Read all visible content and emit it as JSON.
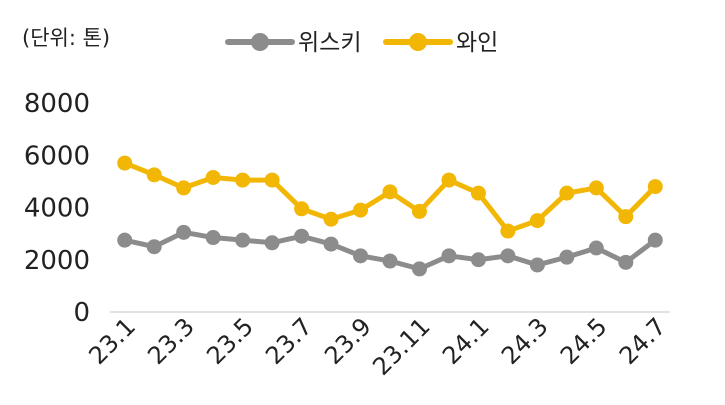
{
  "chart_data": {
    "type": "line",
    "unit_label": "(단위: 톤)",
    "x": [
      "23.1",
      "23.2",
      "23.3",
      "23.4",
      "23.5",
      "23.6",
      "23.7",
      "23.8",
      "23.9",
      "23.10",
      "23.11",
      "23.12",
      "24.1",
      "24.2",
      "24.3",
      "24.4",
      "24.5",
      "24.6",
      "24.7"
    ],
    "x_tick_labels": [
      "23.1",
      "23.3",
      "23.5",
      "23.7",
      "23.9",
      "23.11",
      "24.1",
      "24.3",
      "24.5",
      "24.7"
    ],
    "y_ticks": [
      "8000",
      "6000",
      "4000",
      "2000",
      "0"
    ],
    "ylim": [
      0,
      8000
    ],
    "grid": false,
    "legend_position": "top-center",
    "series": [
      {
        "name": "위스키",
        "color": "#8c8c8c",
        "values": [
          2750,
          2500,
          3050,
          2850,
          2750,
          2650,
          2900,
          2600,
          2150,
          1950,
          1650,
          2150,
          2000,
          2150,
          1800,
          2100,
          2450,
          1900,
          2750
        ]
      },
      {
        "name": "와인",
        "color": "#f2b705",
        "values": [
          5700,
          5250,
          4750,
          5150,
          5050,
          5050,
          3950,
          3550,
          3900,
          4600,
          3850,
          5050,
          4550,
          3100,
          3500,
          4550,
          4750,
          3650,
          4800
        ]
      }
    ]
  }
}
